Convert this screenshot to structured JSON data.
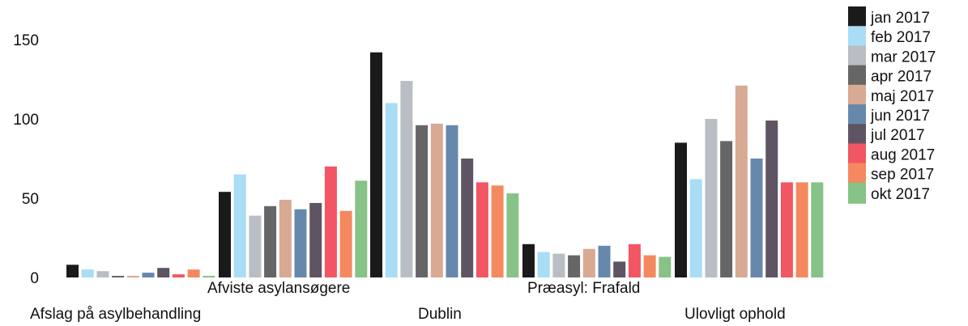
{
  "chart_data": {
    "type": "bar",
    "title": "",
    "xlabel": "",
    "ylabel": "",
    "ylim": [
      0,
      160
    ],
    "yticks": [
      0,
      50,
      100,
      150
    ],
    "grid": false,
    "legend_position": "right",
    "categories": [
      "Afslag på asylbehandling",
      "Afviste asylansøgere",
      "Dublin",
      "Præasyl: Frafald",
      "Ulovligt ophold"
    ],
    "series": [
      {
        "name": "jan 2017",
        "color": "#1a1a1a",
        "values": [
          8,
          54,
          142,
          21,
          85
        ]
      },
      {
        "name": "feb 2017",
        "color": "#a9dcf5",
        "values": [
          5,
          65,
          110,
          16,
          62
        ]
      },
      {
        "name": "mar 2017",
        "color": "#b9bec4",
        "values": [
          4,
          39,
          124,
          15,
          100
        ]
      },
      {
        "name": "apr 2017",
        "color": "#666666",
        "values": [
          1,
          45,
          96,
          14,
          86
        ]
      },
      {
        "name": "maj 2017",
        "color": "#d8a993",
        "values": [
          1,
          49,
          97,
          18,
          121
        ]
      },
      {
        "name": "jun 2017",
        "color": "#6688ad",
        "values": [
          3,
          43,
          96,
          20,
          75
        ]
      },
      {
        "name": "jul 2017",
        "color": "#5e5463",
        "values": [
          6,
          47,
          75,
          10,
          99
        ]
      },
      {
        "name": "aug 2017",
        "color": "#f25563",
        "values": [
          2,
          70,
          60,
          21,
          60
        ]
      },
      {
        "name": "sep 2017",
        "color": "#f4885f",
        "values": [
          5,
          42,
          58,
          14,
          60
        ]
      },
      {
        "name": "okt 2017",
        "color": "#87c287",
        "values": [
          1,
          61,
          53,
          13,
          60
        ]
      }
    ]
  }
}
